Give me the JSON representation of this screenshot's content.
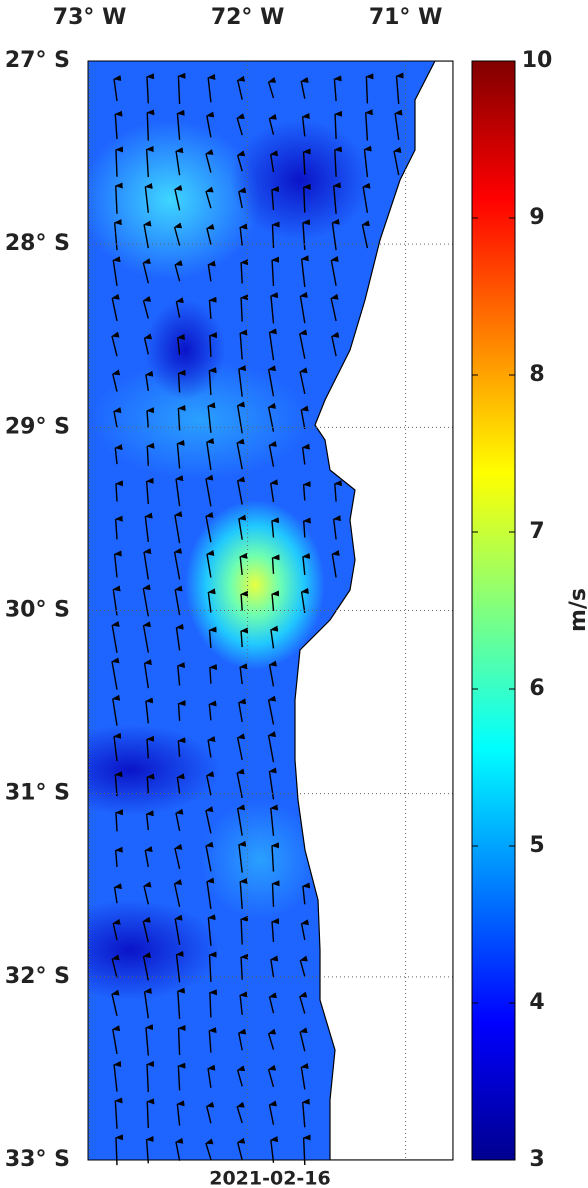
{
  "chart_data": {
    "type": "map",
    "xticks": [
      {
        "value": -73,
        "label": "73° W"
      },
      {
        "value": -72,
        "label": "72° W"
      },
      {
        "value": -71,
        "label": "71° W"
      }
    ],
    "yticks": [
      {
        "value": -27,
        "label": "27° S"
      },
      {
        "value": -28,
        "label": "28° S"
      },
      {
        "value": -29,
        "label": "29° S"
      },
      {
        "value": -30,
        "label": "30° S"
      },
      {
        "value": -31,
        "label": "31° S"
      },
      {
        "value": -32,
        "label": "32° S"
      },
      {
        "value": -33,
        "label": "33° S"
      }
    ],
    "xlim": [
      -73.01,
      -70.7
    ],
    "ylim": [
      -33,
      -27
    ],
    "colorbar": {
      "lim": [
        3,
        10
      ],
      "ticks": [
        3,
        4,
        5,
        6,
        7,
        8,
        9,
        10
      ],
      "label": "m/s"
    },
    "date": "2021-02-16"
  }
}
